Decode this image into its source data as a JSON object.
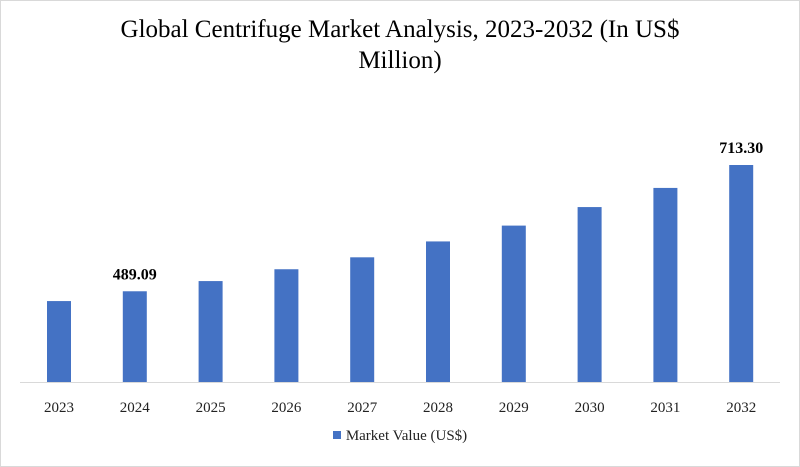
{
  "chart_data": {
    "type": "bar",
    "title": "Global Centrifuge Market Analysis, 2023-2032 (In US$ Million)",
    "categories": [
      "2023",
      "2024",
      "2025",
      "2026",
      "2027",
      "2028",
      "2029",
      "2030",
      "2031",
      "2032"
    ],
    "series": [
      {
        "name": "Market Value (US$)",
        "values": [
          471.7,
          489.09,
          507.2,
          528.2,
          549.4,
          577.6,
          605.7,
          638.6,
          672.6,
          713.3
        ],
        "color": "#4472c4"
      }
    ],
    "data_labels": {
      "1": "489.09",
      "9": "713.30"
    },
    "ylim": [
      328,
      713.3
    ],
    "xlabel": "",
    "ylabel": "",
    "grid": false,
    "y_axis_visible": false,
    "legend": "bottom"
  }
}
